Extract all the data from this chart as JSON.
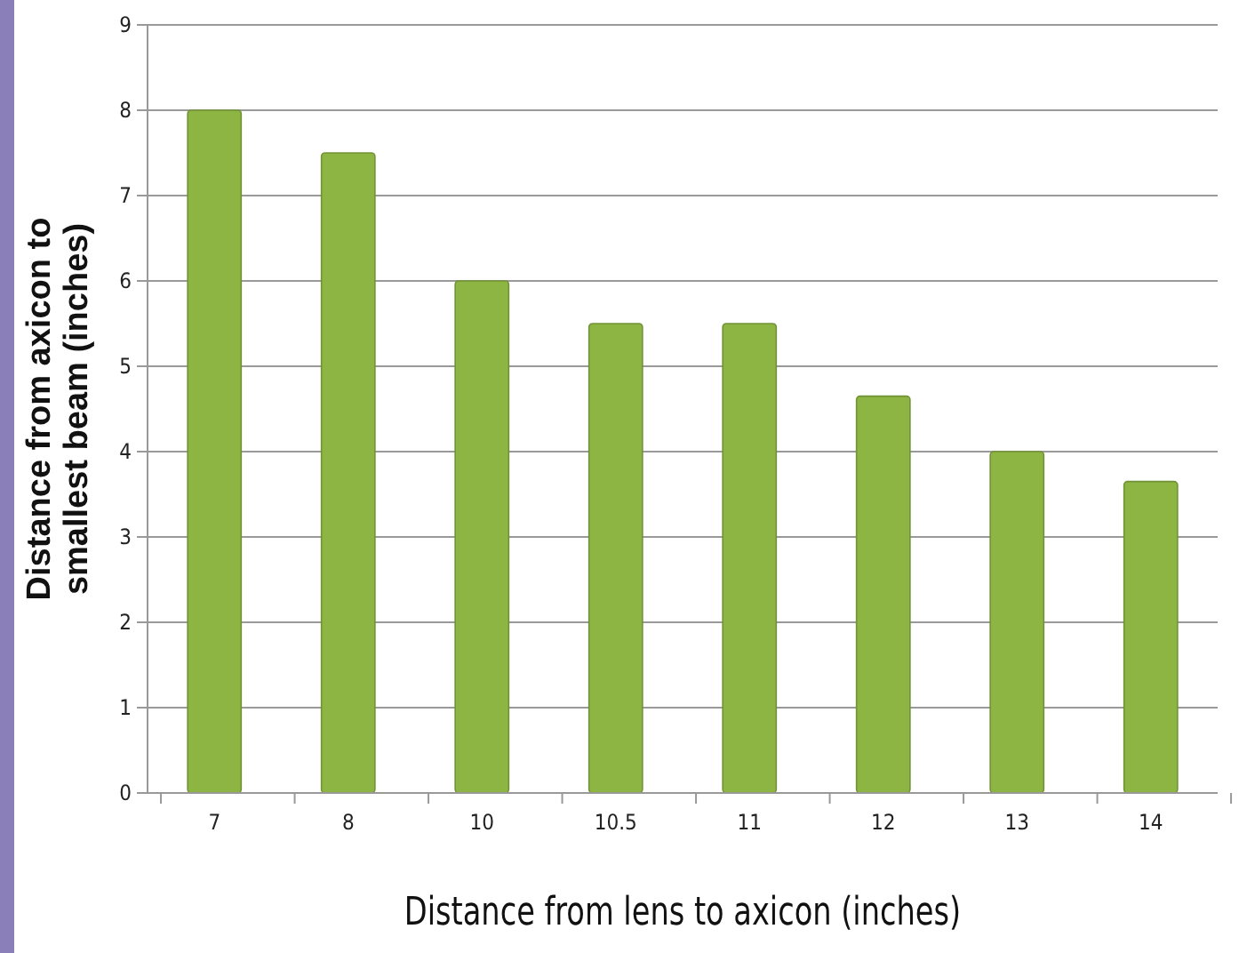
{
  "chart_data": {
    "type": "bar",
    "xlabel": "Distance from lens to axicon (inches)",
    "ylabel": "Distance from axicon to\nsmallest beam (inches)",
    "categories": [
      "7",
      "8",
      "10",
      "10.5",
      "11",
      "12",
      "13",
      "14"
    ],
    "values": [
      8,
      7.5,
      6,
      5.5,
      5.5,
      4.65,
      4,
      3.65
    ],
    "color": "#8db543",
    "ylim": [
      0,
      9
    ],
    "yticks": [
      0,
      1,
      2,
      3,
      4,
      5,
      6,
      7,
      8,
      9
    ],
    "grid": "y"
  }
}
